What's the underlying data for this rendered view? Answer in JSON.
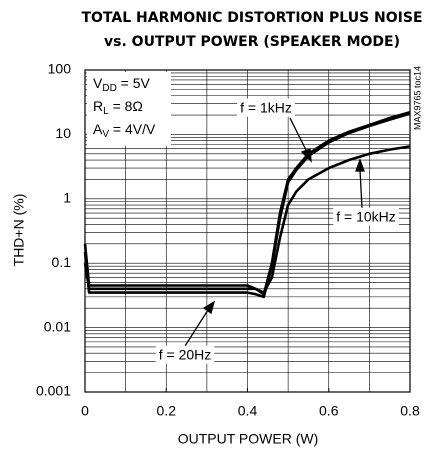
{
  "chart_data": {
    "type": "line",
    "title": [
      "TOTAL HARMONIC DISTORTION PLUS NOISE",
      "vs. OUTPUT POWER (SPEAKER MODE)"
    ],
    "xlabel": "OUTPUT POWER (W)",
    "ylabel": "THD+N (%)",
    "side_note": "MAX9765 toc14",
    "log_y": true,
    "grid": true,
    "xlim": [
      0,
      0.8
    ],
    "xticks": [
      0,
      0.2,
      0.4,
      0.6,
      0.8
    ],
    "xgrid": [
      0,
      0.1,
      0.2,
      0.3,
      0.4,
      0.5,
      0.6,
      0.7,
      0.8
    ],
    "ylim": [
      0.001,
      100
    ],
    "yticks": [
      100,
      10,
      1,
      0.1,
      0.01,
      0.001
    ],
    "conditions": [
      {
        "main": "V",
        "sub": "DD",
        "rest": " = 5V"
      },
      {
        "main": "R",
        "sub": "L",
        "rest": " = 8Ω"
      },
      {
        "main": "A",
        "sub": "V",
        "rest": " = 4V/V"
      }
    ],
    "x": [
      0,
      0.01,
      0.1,
      0.2,
      0.3,
      0.4,
      0.42,
      0.44,
      0.46,
      0.48,
      0.5,
      0.52,
      0.55,
      0.6,
      0.65,
      0.7,
      0.75,
      0.8
    ],
    "series": [
      {
        "name": "f = 1kHz",
        "color": "#000000",
        "values": [
          0.2,
          0.045,
          0.045,
          0.045,
          0.045,
          0.045,
          0.04,
          0.033,
          0.1,
          0.6,
          2,
          3,
          5,
          8,
          11,
          14,
          18,
          22
        ]
      },
      {
        "name": "f = 10kHz",
        "color": "#000000",
        "values": [
          0.1,
          0.04,
          0.04,
          0.04,
          0.04,
          0.04,
          0.04,
          0.035,
          0.06,
          0.25,
          0.8,
          1.3,
          2,
          3,
          4,
          5,
          5.8,
          6.5
        ]
      },
      {
        "name": "f = 20Hz",
        "color": "#000000",
        "values": [
          0.15,
          0.035,
          0.035,
          0.035,
          0.035,
          0.035,
          0.033,
          0.03,
          0.09,
          0.5,
          1.8,
          2.8,
          4.6,
          7.5,
          10.5,
          13.5,
          17,
          21
        ]
      }
    ]
  }
}
